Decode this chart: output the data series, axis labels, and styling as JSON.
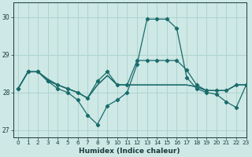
{
  "xlabel": "Humidex (Indice chaleur)",
  "ylabel": "",
  "xlim": [
    -0.5,
    23
  ],
  "ylim": [
    26.8,
    30.4
  ],
  "yticks": [
    27,
    28,
    29,
    30
  ],
  "xticks": [
    0,
    1,
    2,
    3,
    4,
    5,
    6,
    7,
    8,
    9,
    10,
    11,
    12,
    13,
    14,
    15,
    16,
    17,
    18,
    19,
    20,
    21,
    22,
    23
  ],
  "bg_color": "#cde8e5",
  "grid_color": "#b0d4d0",
  "line_color": "#1a6b6b",
  "series1": [
    28.1,
    28.55,
    28.55,
    28.3,
    28.1,
    28.0,
    27.8,
    27.4,
    27.15,
    27.65,
    27.8,
    28.0,
    28.75,
    29.95,
    29.95,
    29.95,
    29.7,
    28.4,
    28.1,
    28.0,
    27.95,
    27.75,
    27.6,
    28.2
  ],
  "series2": [
    28.1,
    28.55,
    28.55,
    28.3,
    28.2,
    28.1,
    28.0,
    27.85,
    28.3,
    28.55,
    28.2,
    28.2,
    28.85,
    28.85,
    28.85,
    28.85,
    28.85,
    28.6,
    28.2,
    28.05,
    28.05,
    28.05,
    28.2,
    28.2
  ],
  "series3": [
    28.1,
    28.55,
    28.55,
    28.35,
    28.2,
    28.1,
    28.0,
    27.85,
    28.2,
    28.45,
    28.2,
    28.2,
    28.2,
    28.2,
    28.2,
    28.2,
    28.2,
    28.2,
    28.15,
    28.05,
    28.05,
    28.05,
    28.2,
    28.2
  ],
  "series4": [
    28.1,
    28.55,
    28.55,
    28.35,
    28.2,
    28.1,
    28.0,
    27.85,
    28.2,
    28.45,
    28.2,
    28.2,
    28.2,
    28.2,
    28.2,
    28.2,
    28.2,
    28.2,
    28.15,
    28.05,
    28.05,
    28.05,
    28.2,
    28.2
  ]
}
